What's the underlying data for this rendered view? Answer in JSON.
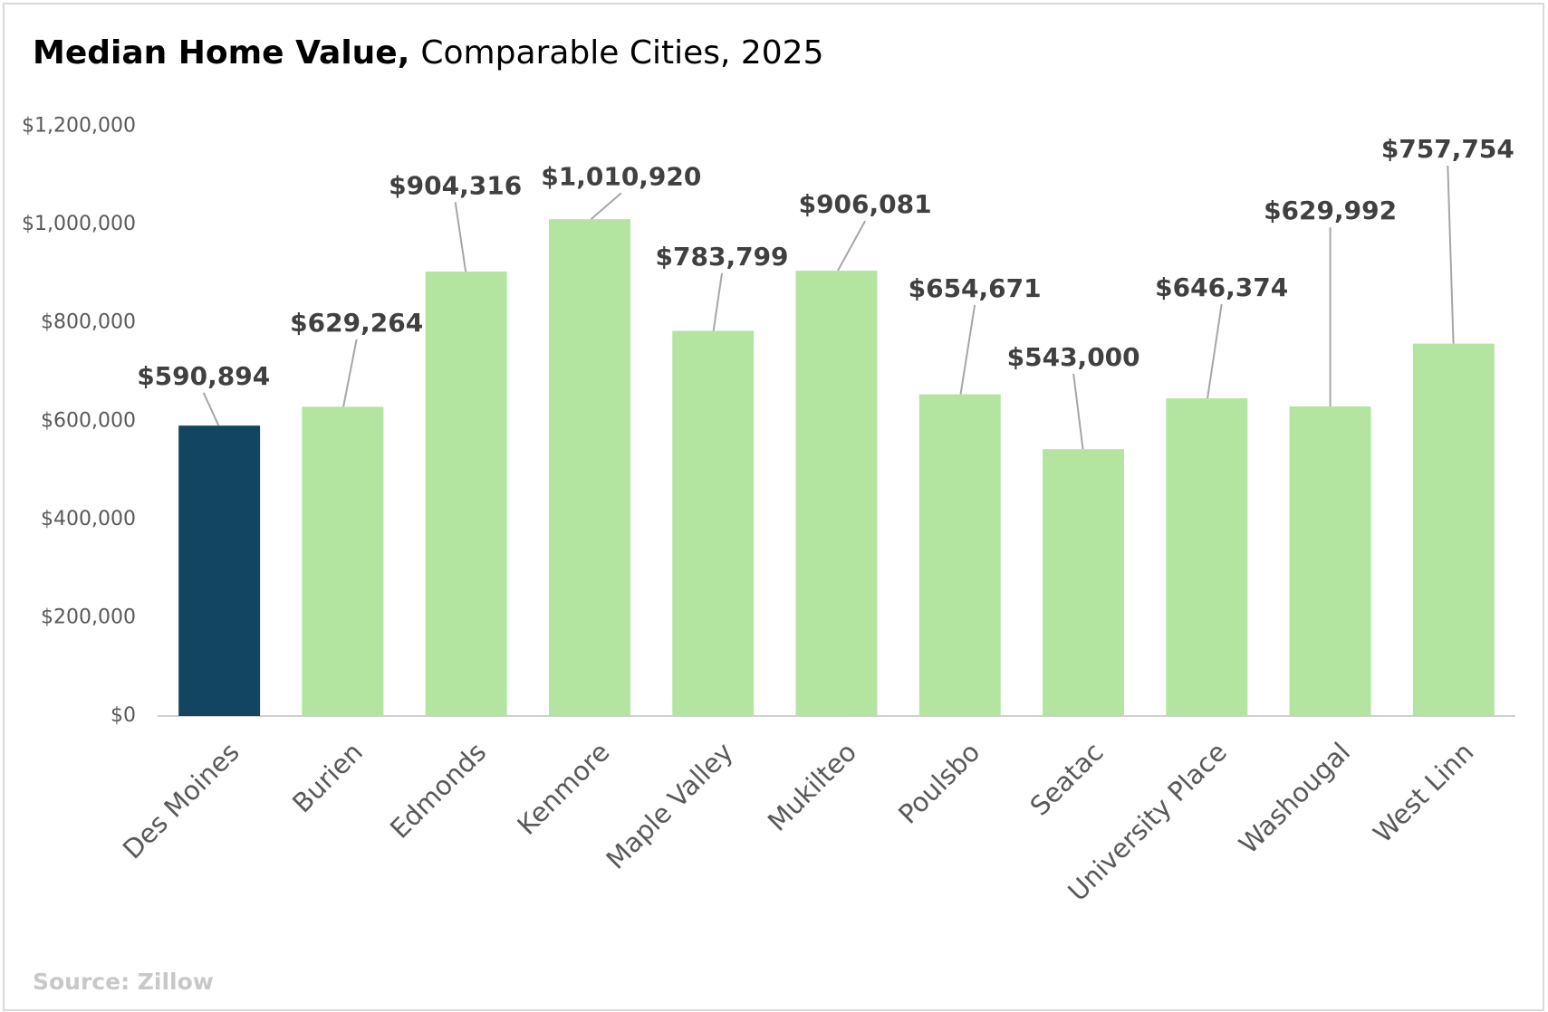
{
  "chart_data": {
    "type": "bar",
    "title": "Median Home Value,",
    "subtitle": "Comparable Cities, 2025",
    "source": "Source: Zillow",
    "categories": [
      "Des Moines",
      "Burien",
      "Edmonds",
      "Kenmore",
      "Maple Valley",
      "Mukilteo",
      "Poulsbo",
      "Seatac",
      "University Place",
      "Washougal",
      "West Linn"
    ],
    "values": [
      590894,
      629264,
      904316,
      1010920,
      783799,
      906081,
      654671,
      543000,
      646374,
      629992,
      757754
    ],
    "value_labels": [
      "$590,894",
      "$629,264",
      "$904,316",
      "$1,010,920",
      "$783,799",
      "$906,081",
      "$654,671",
      "$543,000",
      "$646,374",
      "$629,992",
      "$757,754"
    ],
    "colors": [
      "#124560",
      "#b3e5a1",
      "#b3e5a1",
      "#b3e5a1",
      "#b3e5a1",
      "#b3e5a1",
      "#b3e5a1",
      "#b3e5a1",
      "#b3e5a1",
      "#b3e5a1",
      "#b3e5a1"
    ],
    "ylim": [
      0,
      1200000
    ],
    "yticks": [
      {
        "value": 0,
        "label": "$0"
      },
      {
        "value": 200000,
        "label": "$200,000"
      },
      {
        "value": 400000,
        "label": "$400,000"
      },
      {
        "value": 600000,
        "label": "$600,000"
      },
      {
        "value": 800000,
        "label": "$800,000"
      },
      {
        "value": 1000000,
        "label": "$1,000,000"
      },
      {
        "value": 1200000,
        "label": "$1,200,000"
      }
    ],
    "grid": false
  }
}
